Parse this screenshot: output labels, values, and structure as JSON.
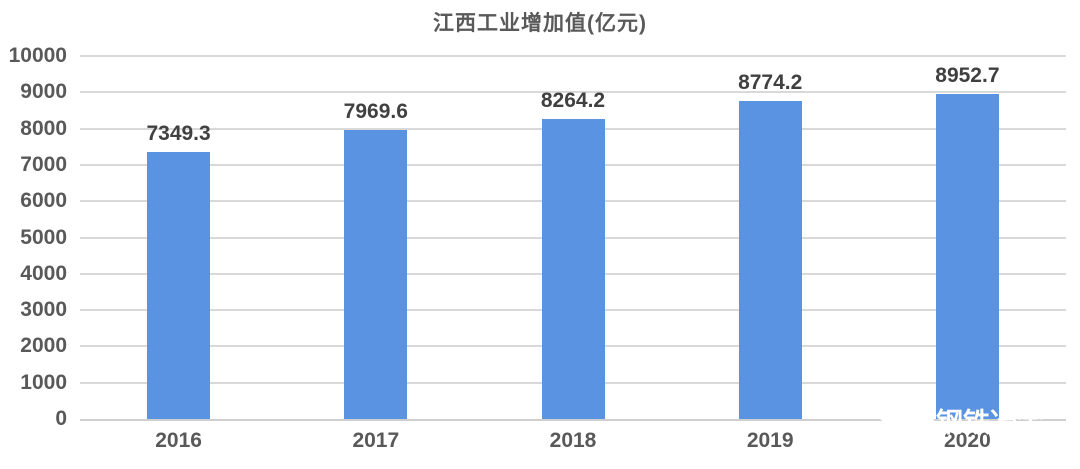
{
  "chart_data": {
    "type": "bar",
    "title": "江西工业增加值(亿元)",
    "categories": [
      "2016",
      "2017",
      "2018",
      "2019",
      "2020"
    ],
    "values": [
      7349.3,
      7969.6,
      8264.2,
      8774.2,
      8952.7
    ],
    "value_labels": [
      "7349.3",
      "7969.6",
      "8264.2",
      "8774.2",
      "8952.7"
    ],
    "xlabel": "",
    "ylabel": "",
    "ylim": [
      0,
      10000
    ],
    "ytick_interval": 1000,
    "yticks": [
      "0",
      "1000",
      "2000",
      "3000",
      "4000",
      "5000",
      "6000",
      "7000",
      "8000",
      "9000",
      "10000"
    ],
    "grid": true,
    "legend": "none",
    "bar_color": "#5b93e3",
    "gridline_color": "#d9d9d9",
    "axis_line_color": "#cfcfcf",
    "tick_label_color": "#595959",
    "value_label_color": "#404040"
  },
  "watermark": {
    "icon": "wechat-icon",
    "text": "钢铁冶金",
    "color": "#ffffff"
  }
}
